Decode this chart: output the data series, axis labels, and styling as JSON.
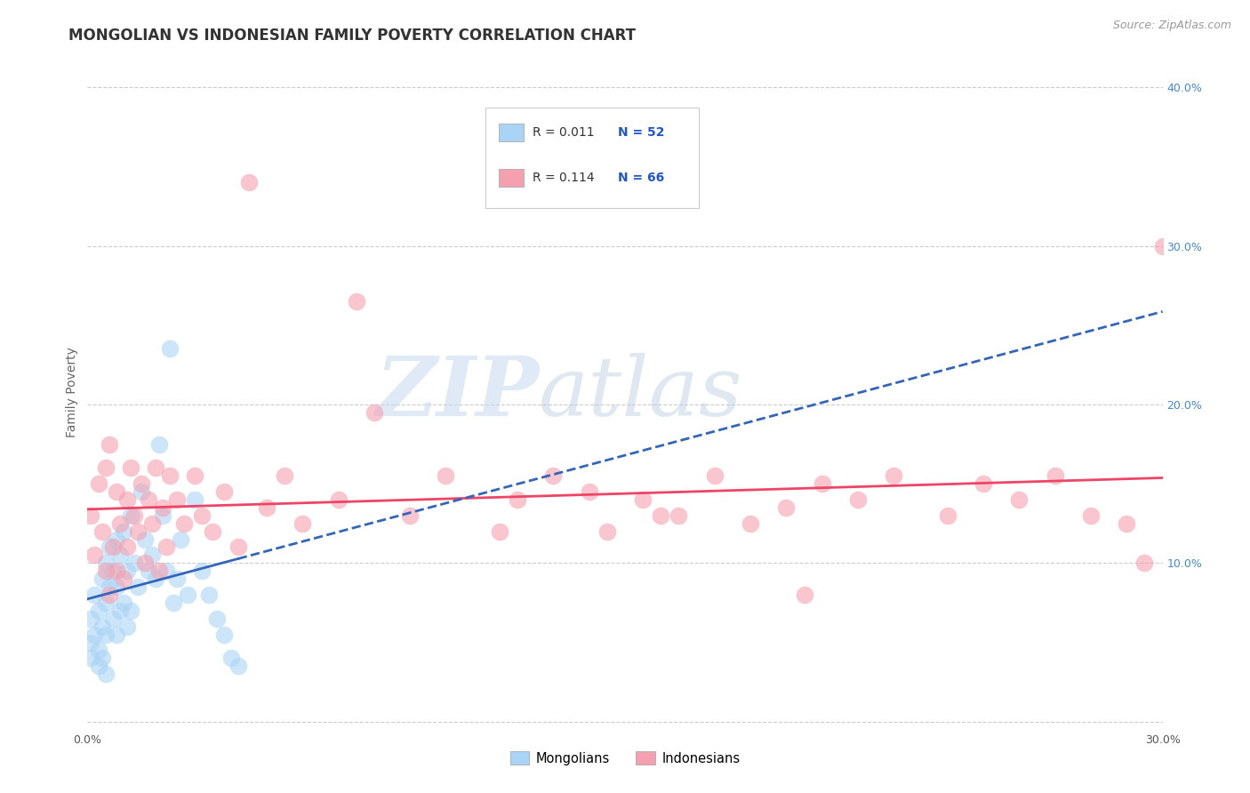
{
  "title": "MONGOLIAN VS INDONESIAN FAMILY POVERTY CORRELATION CHART",
  "source": "Source: ZipAtlas.com",
  "ylabel": "Family Poverty",
  "xlim": [
    0.0,
    0.3
  ],
  "ylim": [
    -0.005,
    0.42
  ],
  "yticks": [
    0.0,
    0.1,
    0.2,
    0.3,
    0.4
  ],
  "yticklabels_right": [
    "",
    "10.0%",
    "20.0%",
    "30.0%",
    "40.0%"
  ],
  "grid_color": "#cccccc",
  "background_color": "#ffffff",
  "mongolian_face_color": "#aad4f5",
  "indonesian_face_color": "#f5a0b0",
  "mongolian_line_color": "#3366bb",
  "indonesian_line_color": "#ee4466",
  "legend_R1": "R = 0.011",
  "legend_N1": "N = 52",
  "legend_R2": "R = 0.114",
  "legend_N2": "N = 66",
  "legend_label1": "Mongolians",
  "legend_label2": "Indonesians",
  "watermark_zip": "ZIP",
  "watermark_atlas": "atlas",
  "title_fontsize": 12,
  "label_fontsize": 10,
  "tick_fontsize": 9,
  "tick_color": "#4488dd",
  "mongolians_x": [
    0.001,
    0.001,
    0.001,
    0.002,
    0.002,
    0.003,
    0.003,
    0.003,
    0.004,
    0.004,
    0.004,
    0.005,
    0.005,
    0.005,
    0.005,
    0.006,
    0.006,
    0.007,
    0.007,
    0.008,
    0.008,
    0.008,
    0.009,
    0.009,
    0.01,
    0.01,
    0.011,
    0.011,
    0.012,
    0.012,
    0.013,
    0.014,
    0.015,
    0.016,
    0.017,
    0.018,
    0.019,
    0.02,
    0.021,
    0.022,
    0.023,
    0.024,
    0.025,
    0.026,
    0.028,
    0.03,
    0.032,
    0.034,
    0.036,
    0.038,
    0.04,
    0.042
  ],
  "mongolians_y": [
    0.065,
    0.05,
    0.04,
    0.08,
    0.055,
    0.07,
    0.045,
    0.035,
    0.09,
    0.06,
    0.04,
    0.1,
    0.075,
    0.055,
    0.03,
    0.11,
    0.085,
    0.095,
    0.065,
    0.115,
    0.085,
    0.055,
    0.105,
    0.07,
    0.12,
    0.075,
    0.095,
    0.06,
    0.13,
    0.07,
    0.1,
    0.085,
    0.145,
    0.115,
    0.095,
    0.105,
    0.09,
    0.175,
    0.13,
    0.095,
    0.235,
    0.075,
    0.09,
    0.115,
    0.08,
    0.14,
    0.095,
    0.08,
    0.065,
    0.055,
    0.04,
    0.035
  ],
  "indonesians_x": [
    0.001,
    0.002,
    0.003,
    0.004,
    0.005,
    0.005,
    0.006,
    0.006,
    0.007,
    0.008,
    0.008,
    0.009,
    0.01,
    0.011,
    0.011,
    0.012,
    0.013,
    0.014,
    0.015,
    0.016,
    0.017,
    0.018,
    0.019,
    0.02,
    0.021,
    0.022,
    0.023,
    0.025,
    0.027,
    0.03,
    0.032,
    0.035,
    0.038,
    0.042,
    0.05,
    0.055,
    0.06,
    0.07,
    0.08,
    0.09,
    0.1,
    0.115,
    0.13,
    0.145,
    0.155,
    0.165,
    0.175,
    0.185,
    0.195,
    0.205,
    0.215,
    0.225,
    0.24,
    0.25,
    0.26,
    0.27,
    0.28,
    0.29,
    0.295,
    0.3,
    0.12,
    0.14,
    0.16,
    0.2,
    0.075,
    0.045
  ],
  "indonesians_y": [
    0.13,
    0.105,
    0.15,
    0.12,
    0.095,
    0.16,
    0.08,
    0.175,
    0.11,
    0.095,
    0.145,
    0.125,
    0.09,
    0.14,
    0.11,
    0.16,
    0.13,
    0.12,
    0.15,
    0.1,
    0.14,
    0.125,
    0.16,
    0.095,
    0.135,
    0.11,
    0.155,
    0.14,
    0.125,
    0.155,
    0.13,
    0.12,
    0.145,
    0.11,
    0.135,
    0.155,
    0.125,
    0.14,
    0.195,
    0.13,
    0.155,
    0.12,
    0.155,
    0.12,
    0.14,
    0.13,
    0.155,
    0.125,
    0.135,
    0.15,
    0.14,
    0.155,
    0.13,
    0.15,
    0.14,
    0.155,
    0.13,
    0.125,
    0.1,
    0.3,
    0.14,
    0.145,
    0.13,
    0.08,
    0.265,
    0.34
  ]
}
